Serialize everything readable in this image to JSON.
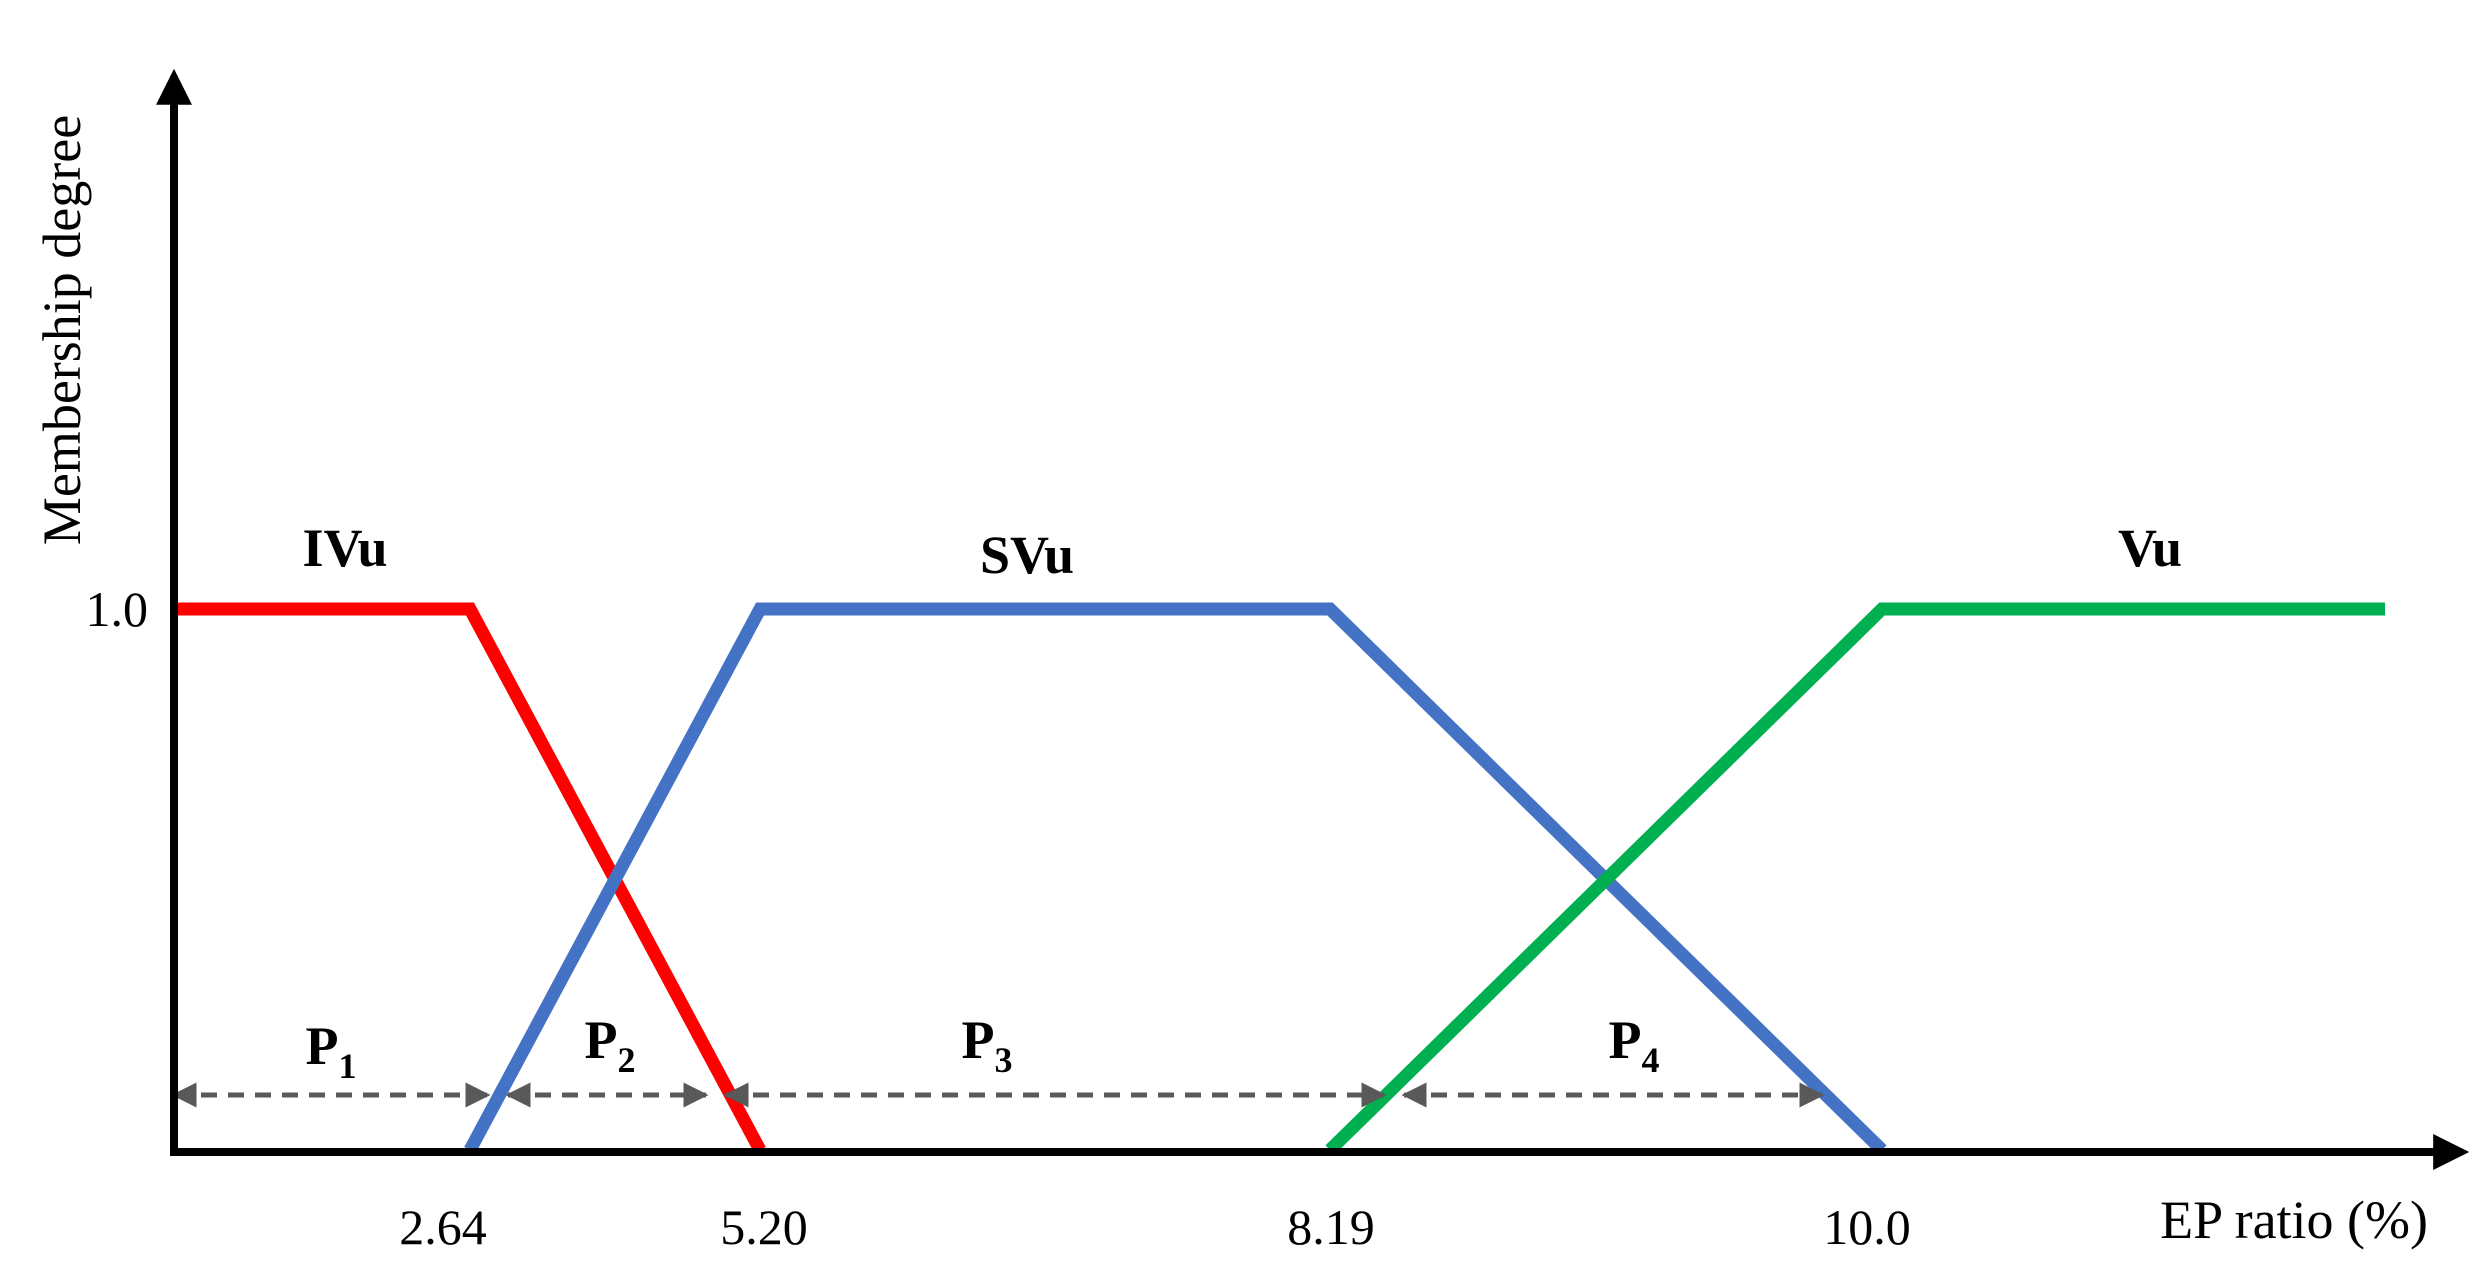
{
  "chart_data": {
    "type": "line",
    "xlabel": "EP ratio (%)",
    "ylabel": "Membership degree",
    "x_tick_labels": [
      "2.64",
      "5.20",
      "8.19",
      "10.0"
    ],
    "y_tick_labels": [
      "1.0"
    ],
    "series": [
      {
        "name": "IVu",
        "color": "#ff0000",
        "points": [
          [
            0.0,
            1.0
          ],
          [
            2.64,
            1.0
          ],
          [
            5.2,
            0.0
          ]
        ]
      },
      {
        "name": "SVu",
        "color": "#4472c4",
        "points": [
          [
            2.64,
            0.0
          ],
          [
            5.2,
            1.0
          ],
          [
            8.19,
            1.0
          ],
          [
            10.0,
            0.0
          ]
        ]
      },
      {
        "name": "Vu",
        "color": "#00b050",
        "points": [
          [
            8.19,
            0.0
          ],
          [
            10.0,
            1.0
          ],
          [
            12.0,
            1.0
          ]
        ]
      }
    ],
    "intervals": [
      {
        "label": "P",
        "subscript": "1",
        "from": 0.0,
        "to": 2.64
      },
      {
        "label": "P",
        "subscript": "2",
        "from": 2.64,
        "to": 5.2
      },
      {
        "label": "P",
        "subscript": "3",
        "from": 5.2,
        "to": 8.19
      },
      {
        "label": "P",
        "subscript": "4",
        "from": 8.19,
        "to": 10.0
      }
    ]
  }
}
